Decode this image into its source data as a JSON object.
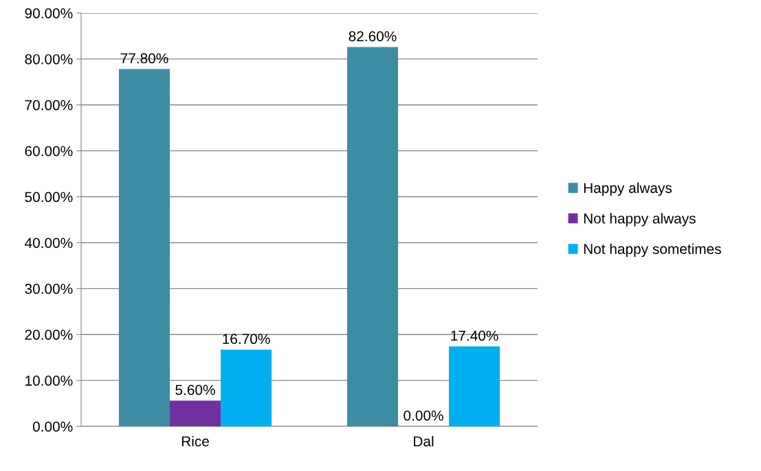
{
  "chart_data": {
    "type": "bar",
    "categories": [
      "Rice",
      "Dal"
    ],
    "series": [
      {
        "name": "Happy always",
        "color": "#3c8da3",
        "values": [
          77.8,
          82.6
        ],
        "value_labels": [
          "77.80%",
          "82.60%"
        ]
      },
      {
        "name": "Not happy always",
        "color": "#7030a0",
        "values": [
          5.6,
          0.0
        ],
        "value_labels": [
          "5.60%",
          "0.00%"
        ]
      },
      {
        "name": "Not happy sometimes",
        "color": "#00b0f0",
        "values": [
          16.7,
          17.4
        ],
        "value_labels": [
          "16.70%",
          "17.40%"
        ]
      }
    ],
    "ylim": [
      0,
      90
    ],
    "yticks": [
      {
        "value": 0,
        "label": "0.00%"
      },
      {
        "value": 10,
        "label": "10.00%"
      },
      {
        "value": 20,
        "label": "20.00%"
      },
      {
        "value": 30,
        "label": "30.00%"
      },
      {
        "value": 40,
        "label": "40.00%"
      },
      {
        "value": 50,
        "label": "50.00%"
      },
      {
        "value": 60,
        "label": "60.00%"
      },
      {
        "value": 70,
        "label": "70.00%"
      },
      {
        "value": 80,
        "label": "80.00%"
      },
      {
        "value": 90,
        "label": "90.00%"
      }
    ],
    "grid": "y",
    "legend": "right"
  }
}
